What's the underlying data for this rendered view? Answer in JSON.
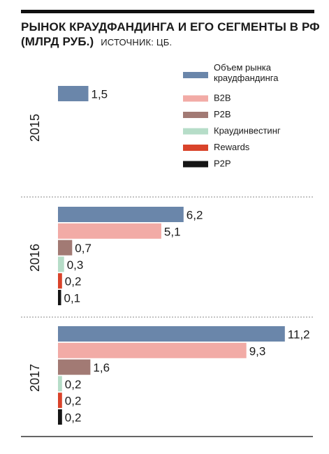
{
  "title": "РЫНОК КРАУДФАНДИНГА И ЕГО СЕГМЕНТЫ В РФ (МЛРД РУБ.)",
  "source": "ИСТОЧНИК: ЦБ.",
  "chart_data": {
    "type": "bar",
    "orientation": "horizontal",
    "categories": [
      "2015",
      "2016",
      "2017"
    ],
    "series": [
      {
        "name": "Объем рынка краудфандинга",
        "color": "#6a86aa",
        "values": [
          1.5,
          6.2,
          11.2
        ],
        "labels": [
          "1,5",
          "6,2",
          "11,2"
        ]
      },
      {
        "name": "B2B",
        "color": "#f2aba6",
        "values": [
          null,
          5.1,
          9.3
        ],
        "labels": [
          "",
          "5,1",
          "9,3"
        ]
      },
      {
        "name": "P2B",
        "color": "#a27a74",
        "values": [
          null,
          0.7,
          1.6
        ],
        "labels": [
          "",
          "0,7",
          "1,6"
        ]
      },
      {
        "name": "Краудинвестинг",
        "color": "#b6ddc8",
        "values": [
          null,
          0.3,
          0.2
        ],
        "labels": [
          "",
          "0,3",
          "0,2"
        ]
      },
      {
        "name": "Rewards",
        "color": "#d9432a",
        "values": [
          null,
          0.2,
          0.2
        ],
        "labels": [
          "",
          "0,2",
          "0,2"
        ]
      },
      {
        "name": "P2P",
        "color": "#151515",
        "values": [
          null,
          0.1,
          0.2
        ],
        "labels": [
          "",
          "0,1",
          "0,2"
        ]
      }
    ],
    "legend_position": "top-right",
    "grid": false
  }
}
